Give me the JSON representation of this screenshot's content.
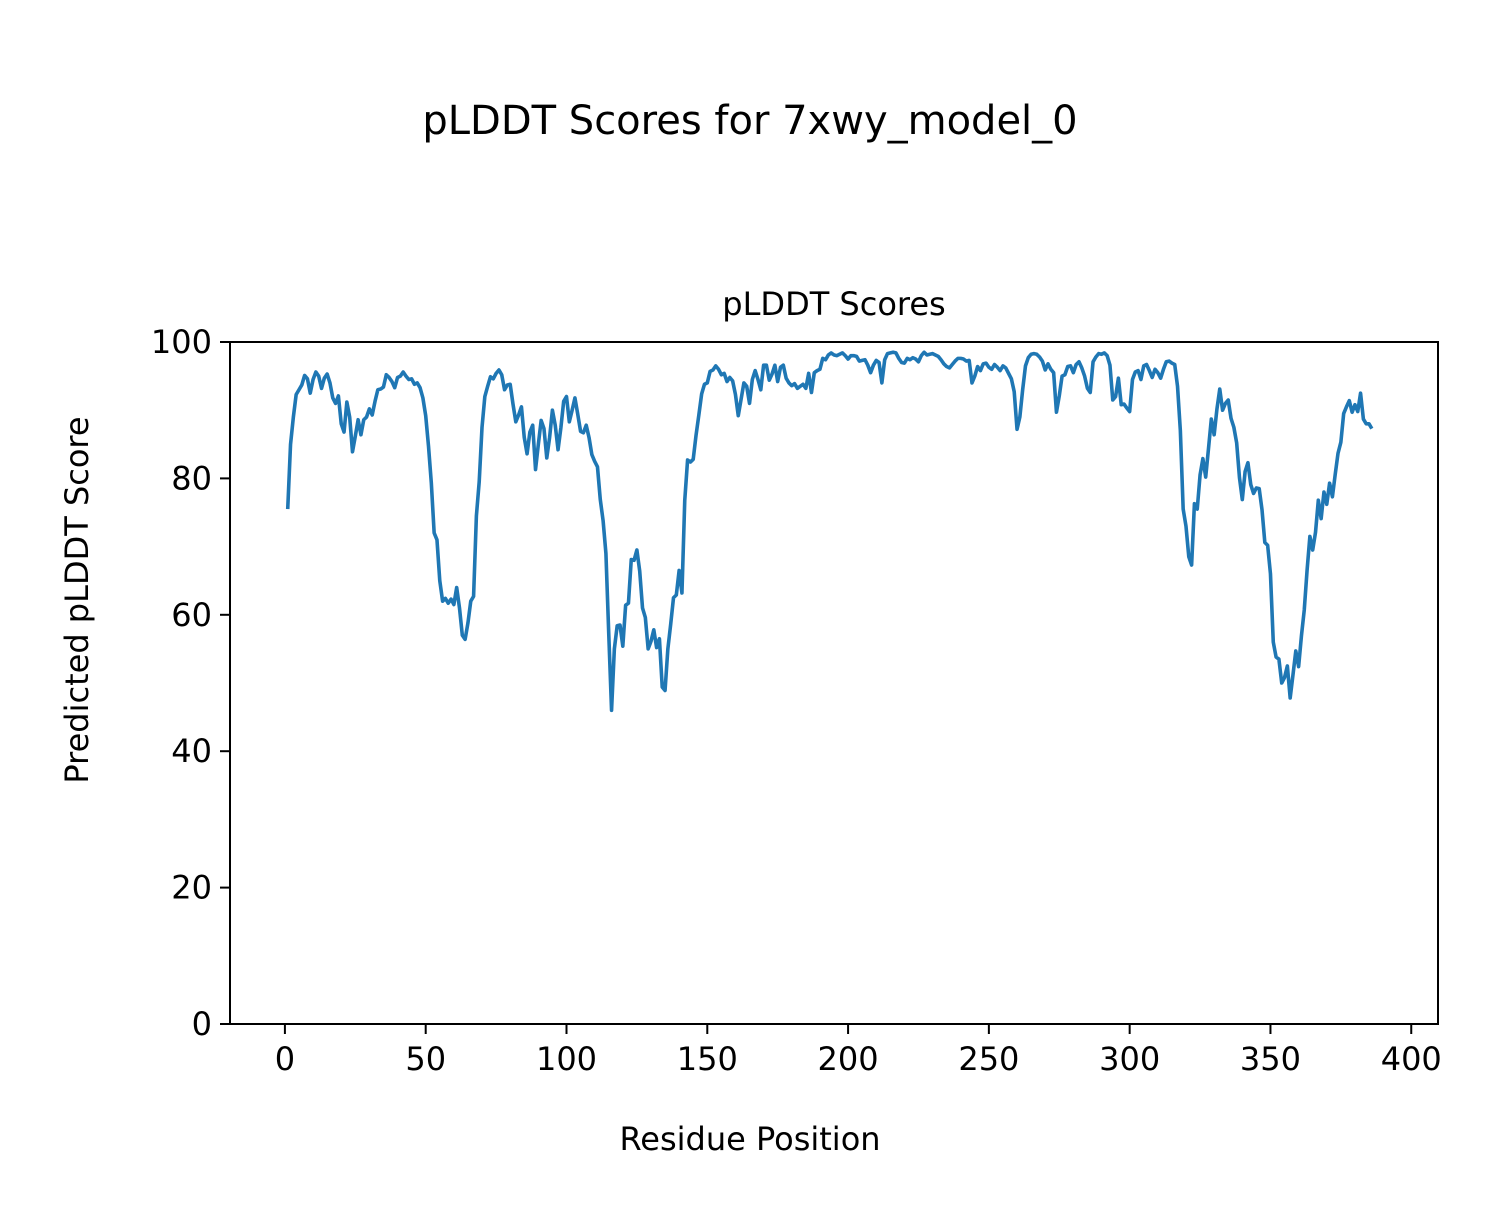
{
  "figure": {
    "suptitle": "pLDDT Scores for 7xwy_model_0"
  },
  "chart_data": {
    "type": "line",
    "title": "pLDDT Scores",
    "xlabel": "Residue Position",
    "ylabel": "Predicted pLDDT Score",
    "xlim": [
      -19.5,
      409.5
    ],
    "ylim": [
      0,
      100
    ],
    "x_ticks": [
      0,
      50,
      100,
      150,
      200,
      250,
      300,
      350,
      400
    ],
    "y_ticks": [
      0,
      20,
      40,
      60,
      80,
      100
    ],
    "grid": false,
    "legend": "none",
    "series": [
      {
        "color": "#1f77b4",
        "x_start": 1,
        "values": [
          75.5,
          85.0,
          89.0,
          92.3,
          93.0,
          93.7,
          95.1,
          94.6,
          92.5,
          94.5,
          95.6,
          95.0,
          93.2,
          94.7,
          95.3,
          94.0,
          91.8,
          91.0,
          92.1,
          88.0,
          86.8,
          91.2,
          89.0,
          83.9,
          86.2,
          88.6,
          86.4,
          88.6,
          89.0,
          90.2,
          89.3,
          91.3,
          93.0,
          93.1,
          93.4,
          95.2,
          94.8,
          94.2,
          93.3,
          94.8,
          95.0,
          95.6,
          95.0,
          94.5,
          94.6,
          93.8,
          94.0,
          93.3,
          91.8,
          89.2,
          84.7,
          79.3,
          72.0,
          71.0,
          65.0,
          62.0,
          62.4,
          61.7,
          62.3,
          61.5,
          64.0,
          61.0,
          57.0,
          56.4,
          58.8,
          62.0,
          62.7,
          74.5,
          79.5,
          87.5,
          92.0,
          93.5,
          94.9,
          94.6,
          95.4,
          95.9,
          95.2,
          93.0,
          93.7,
          93.8,
          90.9,
          88.3,
          89.3,
          90.5,
          86.0,
          83.6,
          86.8,
          87.8,
          81.3,
          85.0,
          88.5,
          87.3,
          83.0,
          86.0,
          90.0,
          87.8,
          84.2,
          87.4,
          91.3,
          92.0,
          88.3,
          90.0,
          91.8,
          89.4,
          86.9,
          86.7,
          87.8,
          86.0,
          83.5,
          82.5,
          81.7,
          76.9,
          73.8,
          69.0,
          57.3,
          46.0,
          55.0,
          58.4,
          58.5,
          55.4,
          61.4,
          61.7,
          68.1,
          68.0,
          69.5,
          66.4,
          61.0,
          59.6,
          55.0,
          56.1,
          57.8,
          55.2,
          56.5,
          49.4,
          48.9,
          55.0,
          58.6,
          62.5,
          62.9,
          66.5,
          63.2,
          76.8,
          82.7,
          82.4,
          82.8,
          86.3,
          89.3,
          92.4,
          93.8,
          94.0,
          95.7,
          95.9,
          96.5,
          96.0,
          95.2,
          95.4,
          94.2,
          94.8,
          94.3,
          92.3,
          89.2,
          91.6,
          94.0,
          93.5,
          91.0,
          94.5,
          95.8,
          94.5,
          93.0,
          96.6,
          96.6,
          94.4,
          95.3,
          96.6,
          94.2,
          96.3,
          96.6,
          94.7,
          94.0,
          93.6,
          93.9,
          93.2,
          93.5,
          93.8,
          93.2,
          95.4,
          92.6,
          95.5,
          95.8,
          96.0,
          97.6,
          97.4,
          98.1,
          98.4,
          98.1,
          98.0,
          98.2,
          98.4,
          98.0,
          97.5,
          98.0,
          98.0,
          97.9,
          97.2,
          97.3,
          97.4,
          96.6,
          95.5,
          96.6,
          97.3,
          97.0,
          94.0,
          97.4,
          98.3,
          98.4,
          98.5,
          98.4,
          97.6,
          97.0,
          96.9,
          97.6,
          97.4,
          97.7,
          97.5,
          97.1,
          98.0,
          98.5,
          98.1,
          98.2,
          98.3,
          98.1,
          97.9,
          97.4,
          96.8,
          96.4,
          96.2,
          96.7,
          97.2,
          97.6,
          97.6,
          97.5,
          97.2,
          97.3,
          94.0,
          95.0,
          96.4,
          95.8,
          96.8,
          96.9,
          96.3,
          96.0,
          96.7,
          96.3,
          95.8,
          96.5,
          96.2,
          95.4,
          94.6,
          92.7,
          87.2,
          89.0,
          93.0,
          96.5,
          97.7,
          98.2,
          98.3,
          98.2,
          97.8,
          97.2,
          95.9,
          96.8,
          96.0,
          95.5,
          89.7,
          92.1,
          95.0,
          95.2,
          96.4,
          96.5,
          95.5,
          96.7,
          97.1,
          96.2,
          95.0,
          93.2,
          92.6,
          97.1,
          97.8,
          98.3,
          98.2,
          98.4,
          98.0,
          96.6,
          91.5,
          92.0,
          94.7,
          90.8,
          90.9,
          90.3,
          89.8,
          94.5,
          95.6,
          95.8,
          94.5,
          96.5,
          96.7,
          95.8,
          94.8,
          96.0,
          95.5,
          94.7,
          96.0,
          97.1,
          97.2,
          96.9,
          96.7,
          93.5,
          87.0,
          75.5,
          73.0,
          68.5,
          67.3,
          76.3,
          75.5,
          80.5,
          82.9,
          80.2,
          84.4,
          88.7,
          86.4,
          90.2,
          93.1,
          90.0,
          91.0,
          91.5,
          88.8,
          87.5,
          85.2,
          80.1,
          76.9,
          81.0,
          82.3,
          79.1,
          77.8,
          78.6,
          78.5,
          75.4,
          70.6,
          70.2,
          66.0,
          56.0,
          53.8,
          53.5,
          50.0,
          50.8,
          52.5,
          47.8,
          51.2,
          54.7,
          52.4,
          56.9,
          60.7,
          66.5,
          71.5,
          69.5,
          72.1,
          76.8,
          74.1,
          78.0,
          76.2,
          79.3,
          77.3,
          80.6,
          83.7,
          85.3,
          89.5,
          90.5,
          91.4,
          89.7,
          90.8,
          89.8,
          92.5,
          88.7,
          88.0,
          88.0,
          87.3
        ]
      }
    ]
  }
}
